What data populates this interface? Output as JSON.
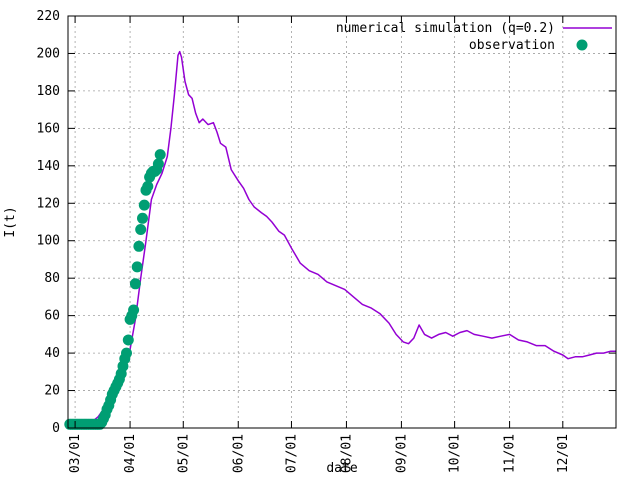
{
  "chart_data": {
    "type": "line",
    "xlabel": "date",
    "ylabel": "I(t)",
    "ylim": [
      0,
      220
    ],
    "yticks": [
      0,
      20,
      40,
      60,
      80,
      100,
      120,
      140,
      160,
      180,
      200,
      220
    ],
    "xlim": [
      "2020-02-26",
      "2020-12-31"
    ],
    "xticks": [
      {
        "date": "2020-03-01",
        "label": "03/01"
      },
      {
        "date": "2020-04-01",
        "label": "04/01"
      },
      {
        "date": "2020-05-01",
        "label": "05/01"
      },
      {
        "date": "2020-06-01",
        "label": "06/01"
      },
      {
        "date": "2020-07-01",
        "label": "07/01"
      },
      {
        "date": "2020-08-01",
        "label": "08/01"
      },
      {
        "date": "2020-09-01",
        "label": "09/01"
      },
      {
        "date": "2020-10-01",
        "label": "10/01"
      },
      {
        "date": "2020-11-01",
        "label": "11/01"
      },
      {
        "date": "2020-12-01",
        "label": "12/01"
      }
    ],
    "grid": true,
    "legend_position": "top-right",
    "series": [
      {
        "name": "numerical simulation (q=0.2)",
        "kind": "line",
        "color": "#9400d3",
        "points": [
          [
            "2020-02-26",
            2
          ],
          [
            "2020-03-04",
            2
          ],
          [
            "2020-03-10",
            3
          ],
          [
            "2020-03-14",
            6
          ],
          [
            "2020-03-17",
            10
          ],
          [
            "2020-03-20",
            15
          ],
          [
            "2020-03-23",
            20
          ],
          [
            "2020-03-26",
            26
          ],
          [
            "2020-03-29",
            32
          ],
          [
            "2020-04-01",
            42
          ],
          [
            "2020-04-04",
            58
          ],
          [
            "2020-04-07",
            80
          ],
          [
            "2020-04-10",
            100
          ],
          [
            "2020-04-13",
            122
          ],
          [
            "2020-04-16",
            130
          ],
          [
            "2020-04-19",
            136
          ],
          [
            "2020-04-22",
            145
          ],
          [
            "2020-04-24",
            160
          ],
          [
            "2020-04-26",
            178
          ],
          [
            "2020-04-28",
            199
          ],
          [
            "2020-04-29",
            201
          ],
          [
            "2020-04-30",
            198
          ],
          [
            "2020-05-02",
            185
          ],
          [
            "2020-05-04",
            178
          ],
          [
            "2020-05-06",
            176
          ],
          [
            "2020-05-08",
            168
          ],
          [
            "2020-05-10",
            163
          ],
          [
            "2020-05-12",
            165
          ],
          [
            "2020-05-15",
            162
          ],
          [
            "2020-05-18",
            163
          ],
          [
            "2020-05-20",
            158
          ],
          [
            "2020-05-22",
            152
          ],
          [
            "2020-05-25",
            150
          ],
          [
            "2020-05-28",
            138
          ],
          [
            "2020-06-01",
            132
          ],
          [
            "2020-06-04",
            128
          ],
          [
            "2020-06-07",
            122
          ],
          [
            "2020-06-10",
            118
          ],
          [
            "2020-06-14",
            115
          ],
          [
            "2020-06-17",
            113
          ],
          [
            "2020-06-20",
            110
          ],
          [
            "2020-06-24",
            105
          ],
          [
            "2020-06-27",
            103
          ],
          [
            "2020-07-01",
            96
          ],
          [
            "2020-07-06",
            88
          ],
          [
            "2020-07-11",
            84
          ],
          [
            "2020-07-16",
            82
          ],
          [
            "2020-07-21",
            78
          ],
          [
            "2020-07-26",
            76
          ],
          [
            "2020-07-31",
            74
          ],
          [
            "2020-08-05",
            70
          ],
          [
            "2020-08-10",
            66
          ],
          [
            "2020-08-15",
            64
          ],
          [
            "2020-08-20",
            61
          ],
          [
            "2020-08-25",
            56
          ],
          [
            "2020-08-29",
            50
          ],
          [
            "2020-09-02",
            46
          ],
          [
            "2020-09-05",
            45
          ],
          [
            "2020-09-08",
            48
          ],
          [
            "2020-09-11",
            55
          ],
          [
            "2020-09-14",
            50
          ],
          [
            "2020-09-18",
            48
          ],
          [
            "2020-09-22",
            50
          ],
          [
            "2020-09-26",
            51
          ],
          [
            "2020-09-30",
            49
          ],
          [
            "2020-10-04",
            51
          ],
          [
            "2020-10-08",
            52
          ],
          [
            "2020-10-12",
            50
          ],
          [
            "2020-10-17",
            49
          ],
          [
            "2020-10-22",
            48
          ],
          [
            "2020-10-27",
            49
          ],
          [
            "2020-11-01",
            50
          ],
          [
            "2020-11-06",
            47
          ],
          [
            "2020-11-11",
            46
          ],
          [
            "2020-11-16",
            44
          ],
          [
            "2020-11-21",
            44
          ],
          [
            "2020-11-26",
            41
          ],
          [
            "2020-12-01",
            39
          ],
          [
            "2020-12-04",
            37
          ],
          [
            "2020-12-08",
            38
          ],
          [
            "2020-12-12",
            38
          ],
          [
            "2020-12-16",
            39
          ],
          [
            "2020-12-20",
            40
          ],
          [
            "2020-12-24",
            40
          ],
          [
            "2020-12-28",
            41
          ],
          [
            "2020-12-31",
            41
          ]
        ]
      },
      {
        "name": "observation",
        "kind": "scatter",
        "color": "#009e73",
        "points": [
          [
            "2020-02-27",
            2
          ],
          [
            "2020-02-28",
            2
          ],
          [
            "2020-02-29",
            2
          ],
          [
            "2020-03-01",
            2
          ],
          [
            "2020-03-02",
            2
          ],
          [
            "2020-03-03",
            2
          ],
          [
            "2020-03-04",
            2
          ],
          [
            "2020-03-05",
            2
          ],
          [
            "2020-03-06",
            2
          ],
          [
            "2020-03-07",
            2
          ],
          [
            "2020-03-08",
            2
          ],
          [
            "2020-03-09",
            2
          ],
          [
            "2020-03-10",
            2
          ],
          [
            "2020-03-11",
            2
          ],
          [
            "2020-03-12",
            2
          ],
          [
            "2020-03-13",
            2
          ],
          [
            "2020-03-14",
            2
          ],
          [
            "2020-03-15",
            2
          ],
          [
            "2020-03-16",
            3
          ],
          [
            "2020-03-17",
            5
          ],
          [
            "2020-03-18",
            7
          ],
          [
            "2020-03-19",
            10
          ],
          [
            "2020-03-20",
            12
          ],
          [
            "2020-03-21",
            15
          ],
          [
            "2020-03-22",
            18
          ],
          [
            "2020-03-23",
            20
          ],
          [
            "2020-03-24",
            22
          ],
          [
            "2020-03-25",
            24
          ],
          [
            "2020-03-26",
            26
          ],
          [
            "2020-03-27",
            29
          ],
          [
            "2020-03-28",
            33
          ],
          [
            "2020-03-29",
            37
          ],
          [
            "2020-03-30",
            40
          ],
          [
            "2020-03-31",
            47
          ],
          [
            "2020-04-01",
            58
          ],
          [
            "2020-04-02",
            60
          ],
          [
            "2020-04-03",
            63
          ],
          [
            "2020-04-04",
            77
          ],
          [
            "2020-04-05",
            86
          ],
          [
            "2020-04-06",
            97
          ],
          [
            "2020-04-07",
            106
          ],
          [
            "2020-04-08",
            112
          ],
          [
            "2020-04-09",
            119
          ],
          [
            "2020-04-10",
            127
          ],
          [
            "2020-04-11",
            129
          ],
          [
            "2020-04-12",
            134
          ],
          [
            "2020-04-13",
            136
          ],
          [
            "2020-04-14",
            137
          ],
          [
            "2020-04-15",
            137
          ],
          [
            "2020-04-16",
            138
          ],
          [
            "2020-04-17",
            141
          ],
          [
            "2020-04-18",
            146
          ]
        ]
      }
    ]
  }
}
